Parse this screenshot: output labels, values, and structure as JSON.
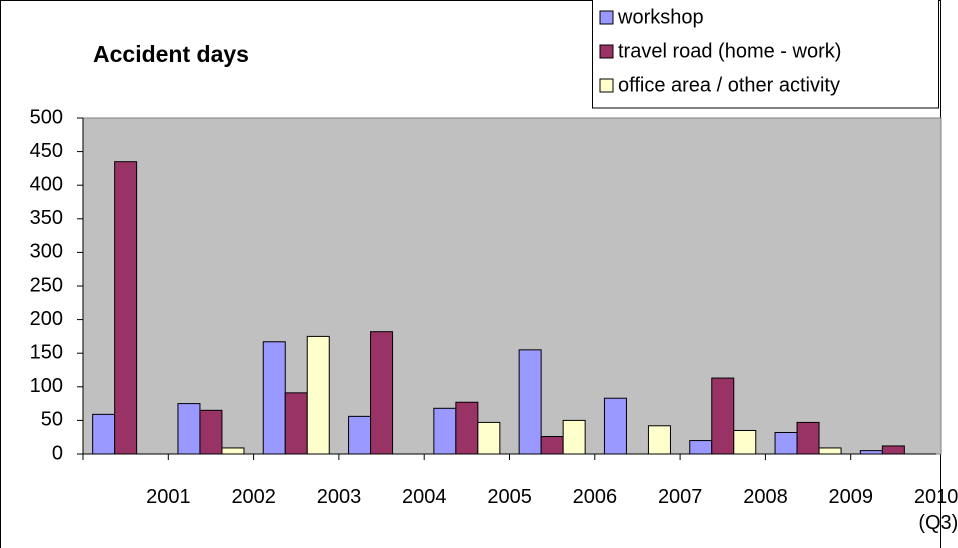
{
  "chart_data": {
    "type": "bar",
    "title": "Accident days",
    "categories": [
      "2001",
      "2002",
      "2003",
      "2004",
      "2005",
      "2006",
      "2007",
      "2008",
      "2009",
      "2010\n(Q3)"
    ],
    "series": [
      {
        "name": "workshop",
        "color": "#9999ff",
        "values": [
          59,
          75,
          167,
          56,
          68,
          155,
          83,
          20,
          32,
          5
        ]
      },
      {
        "name": "travel road (home - work)",
        "color": "#993366",
        "values": [
          435,
          65,
          91,
          182,
          77,
          26,
          null,
          113,
          47,
          12
        ]
      },
      {
        "name": "office area / other activity",
        "color": "#ffffcc",
        "values": [
          null,
          9,
          175,
          null,
          47,
          50,
          42,
          35,
          9,
          null
        ]
      }
    ],
    "ylim": [
      0,
      500
    ],
    "yticks": [
      0,
      50,
      100,
      150,
      200,
      250,
      300,
      350,
      400,
      450,
      500
    ],
    "grid": false,
    "legend": "top-right",
    "plot_background": "#c0c0c0"
  }
}
